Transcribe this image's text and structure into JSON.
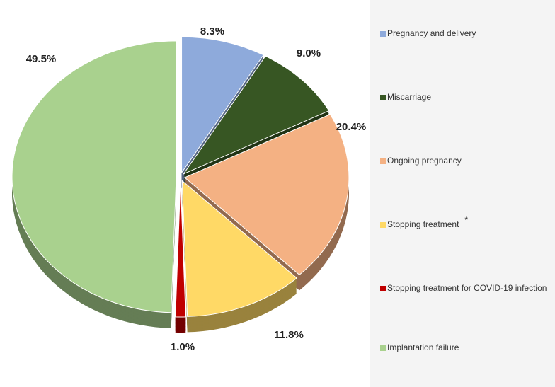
{
  "chart_data": {
    "type": "pie3d",
    "categories": [
      "Pregnancy and delivery",
      "Miscarriage",
      "Ongoing pregnancy",
      "Stopping treatment",
      "Stopping treatment for COVID-19 infection",
      "Implantation failure"
    ],
    "values": [
      8.3,
      9.0,
      20.4,
      11.8,
      1.0,
      49.5
    ],
    "value_labels": [
      "8.3%",
      "9.0%",
      "20.4%",
      "11.8%",
      "1.0%",
      "49.5%"
    ],
    "colors": [
      "#8eaadb",
      "#375623",
      "#f4b183",
      "#ffd966",
      "#c00000",
      "#a9d18e"
    ],
    "annotation": "*",
    "legend": "right"
  }
}
